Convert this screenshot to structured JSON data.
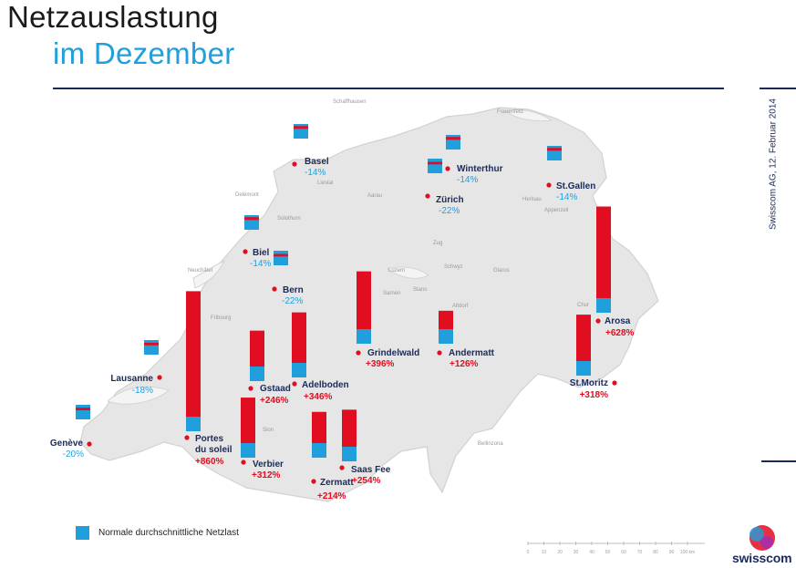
{
  "title": {
    "line1": "Netzauslastung",
    "line2": "im Dezember"
  },
  "sidebar": {
    "text": "Swisscom AG,  12.  Februar 2014"
  },
  "legend": {
    "label": "Normale durchschnittliche Netzlast"
  },
  "logo": {
    "text": "swisscom"
  },
  "colors": {
    "normal": "#1fa0dc",
    "increase": "#e10d20",
    "map": "#e6e6e6",
    "marker": "#e10d20"
  },
  "scale": {
    "ticks": [
      "0",
      "10",
      "20",
      "30",
      "40",
      "50",
      "60",
      "70",
      "80",
      "90",
      "100 km"
    ]
  },
  "places": [
    "Schaffhausen",
    "Frauenfeld",
    "Herisau",
    "Appenzell",
    "Liestal",
    "Delémont",
    "Aarau",
    "Solothurn",
    "Zug",
    "Schwyz",
    "Glarus",
    "Luzern",
    "Stans",
    "Sarnen",
    "Altdorf",
    "Neuchâtel",
    "Fribourg",
    "Chur",
    "Bellinzona",
    "Sion"
  ],
  "chart_data": {
    "type": "bar",
    "title": "Netzauslastung im Dezember",
    "baseline_label": "Normale durchschnittliche Netzlast",
    "unit": "% vs. normale durchschnittliche Netzlast",
    "series": [
      {
        "name": "Basel",
        "value": -14,
        "label": "-14%"
      },
      {
        "name": "Winterthur",
        "value": -14,
        "label": "-14%"
      },
      {
        "name": "Zürich",
        "value": -22,
        "label": "-22%"
      },
      {
        "name": "St.Gallen",
        "value": -14,
        "label": "-14%"
      },
      {
        "name": "Biel",
        "value": -14,
        "label": "-14%"
      },
      {
        "name": "Bern",
        "value": -22,
        "label": "-22%"
      },
      {
        "name": "Lausanne",
        "value": -18,
        "label": "-18%"
      },
      {
        "name": "Genève",
        "value": -20,
        "label": "-20%"
      },
      {
        "name": "Grindelwald",
        "value": 396,
        "label": "+396%"
      },
      {
        "name": "Andermatt",
        "value": 126,
        "label": "+126%"
      },
      {
        "name": "Arosa",
        "value": 628,
        "label": "+628%"
      },
      {
        "name": "St.Moritz",
        "value": 318,
        "label": "+318%"
      },
      {
        "name": "Gstaad",
        "value": 246,
        "label": "+246%"
      },
      {
        "name": "Adelboden",
        "value": 346,
        "label": "+346%"
      },
      {
        "name": "Portes du soleil",
        "value": 860,
        "label": "+860%"
      },
      {
        "name": "Verbier",
        "value": 312,
        "label": "+312%"
      },
      {
        "name": "Zermatt",
        "value": 214,
        "label": "+214%"
      },
      {
        "name": "Saas Fee",
        "value": 254,
        "label": "+254%"
      }
    ]
  }
}
